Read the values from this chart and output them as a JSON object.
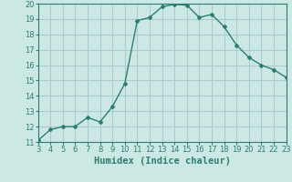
{
  "x": [
    3,
    4,
    5,
    6,
    7,
    8,
    9,
    10,
    11,
    12,
    13,
    14,
    15,
    16,
    17,
    18,
    19,
    20,
    21,
    22,
    23
  ],
  "y": [
    11.1,
    11.8,
    12.0,
    12.0,
    12.6,
    12.3,
    13.3,
    14.8,
    18.9,
    19.1,
    19.8,
    19.95,
    19.9,
    19.1,
    19.3,
    18.5,
    17.3,
    16.5,
    16.0,
    15.7,
    15.2
  ],
  "line_color": "#2e7d6e",
  "marker": "D",
  "marker_size": 2.0,
  "bg_color": "#cce8e4",
  "grid_color": "#aacccc",
  "xlabel": "Humidex (Indice chaleur)",
  "xlim": [
    3,
    23
  ],
  "ylim": [
    11,
    20
  ],
  "xticks": [
    3,
    4,
    5,
    6,
    7,
    8,
    9,
    10,
    11,
    12,
    13,
    14,
    15,
    16,
    17,
    18,
    19,
    20,
    21,
    22,
    23
  ],
  "yticks": [
    11,
    12,
    13,
    14,
    15,
    16,
    17,
    18,
    19,
    20
  ],
  "tick_fontsize": 6.0,
  "xlabel_fontsize": 7.5,
  "xlabel_bold": true,
  "linewidth": 1.0
}
